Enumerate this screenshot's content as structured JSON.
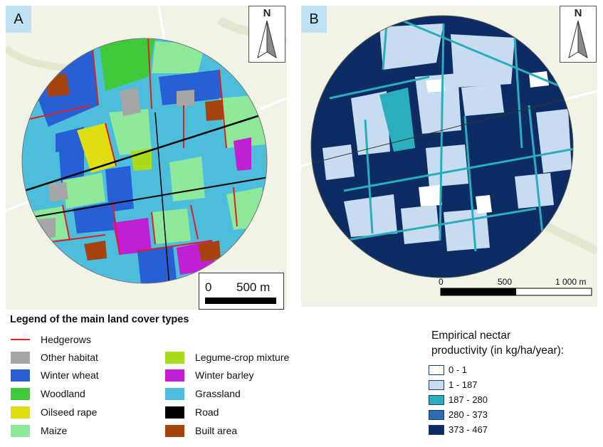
{
  "panel_a": {
    "label": "A",
    "north": "N",
    "scale": {
      "zero": "0",
      "distance": "500 m"
    }
  },
  "panel_b": {
    "label": "B",
    "north": "N",
    "scale": {
      "zero": "0",
      "mid": "500",
      "end": "1 000 m"
    }
  },
  "legend_a": {
    "title": "Legend of the main land cover types",
    "hedgerows": {
      "label": "Hedgerows",
      "color": "#e02020"
    },
    "items": [
      {
        "label": "Other habitat",
        "color": "#a6a6a9"
      },
      {
        "label": "Winter wheat",
        "color": "#2660d4"
      },
      {
        "label": "Woodland",
        "color": "#3fca3a"
      },
      {
        "label": "Oilseed rape",
        "color": "#dede10"
      },
      {
        "label": "Maize",
        "color": "#8ee89a"
      },
      {
        "label": "Legume-crop mixture",
        "color": "#a9da1c"
      },
      {
        "label": "Winter barley",
        "color": "#c11fd3"
      },
      {
        "label": "Grassland",
        "color": "#4cbedc"
      },
      {
        "label": "Road",
        "color": "#000000"
      },
      {
        "label": "Built area",
        "color": "#a4430e"
      }
    ]
  },
  "legend_b": {
    "title_line1": "Empirical nectar",
    "title_line2": "productivity (in kg/ha/year):",
    "classes": [
      {
        "label": "0 - 1",
        "color": "#ffffff"
      },
      {
        "label": "1 - 187",
        "color": "#c7dcf0"
      },
      {
        "label": "187 - 280",
        "color": "#2aaebb"
      },
      {
        "label": "280 - 373",
        "color": "#2a6db0"
      },
      {
        "label": "373 - 467",
        "color": "#0d2c63"
      }
    ]
  }
}
